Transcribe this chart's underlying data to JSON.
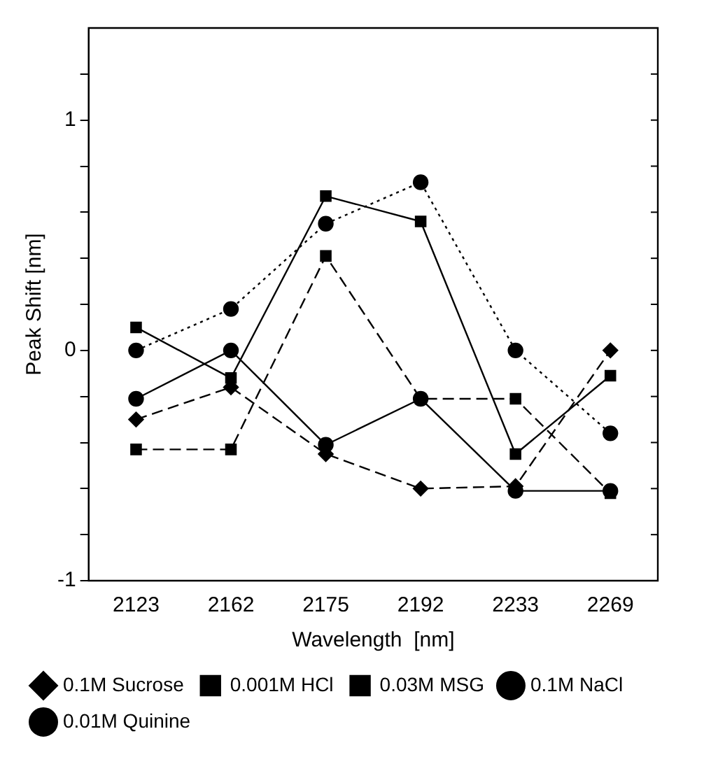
{
  "chart_data": {
    "type": "line",
    "xlabel": "Wavelength  [nm]",
    "ylabel": "Peak Shift [nm]",
    "categories": [
      "2123",
      "2162",
      "2175",
      "2192",
      "2233",
      "2269"
    ],
    "ylim": [
      -1,
      1.4
    ],
    "yticks": [
      -1,
      {
        "value": -0.8,
        "label": null
      },
      {
        "value": -0.6,
        "label": null
      },
      {
        "value": -0.4,
        "label": null
      },
      {
        "value": -0.2,
        "label": null
      },
      0,
      {
        "value": 0.2,
        "label": null
      },
      {
        "value": 0.4,
        "label": null
      },
      {
        "value": 0.6,
        "label": null
      },
      {
        "value": 0.8,
        "label": null
      },
      1,
      {
        "value": 1.2,
        "label": null
      }
    ],
    "grid": false,
    "legend": "bottom",
    "series": [
      {
        "name": "0.01M Quinine",
        "color": "#000000",
        "marker": "circle",
        "line_style": "solid",
        "values": [
          -0.21,
          0,
          -0.41,
          -0.21,
          -0.61,
          -0.61
        ]
      },
      {
        "name": "0.1M NaCl",
        "color": "#000000",
        "marker": "circle",
        "line_style": "dotted",
        "values": [
          0,
          0.18,
          0.55,
          0.73,
          0,
          -0.36
        ]
      },
      {
        "name": "0.03M MSG",
        "color": "#000000",
        "marker": "square",
        "line_style": "dashed",
        "values": [
          -0.43,
          -0.43,
          0.41,
          -0.21,
          -0.21,
          -0.62
        ]
      },
      {
        "name": "0.001M HCl",
        "color": "#000000",
        "marker": "square",
        "line_style": "solid",
        "values": [
          0.1,
          -0.12,
          0.67,
          0.56,
          -0.45,
          -0.11
        ]
      },
      {
        "name": "0.1M Sucrose",
        "color": "#000000",
        "marker": "diamond",
        "line_style": "dashed",
        "values": [
          -0.3,
          -0.16,
          -0.45,
          -0.6,
          -0.59,
          0
        ]
      }
    ]
  }
}
